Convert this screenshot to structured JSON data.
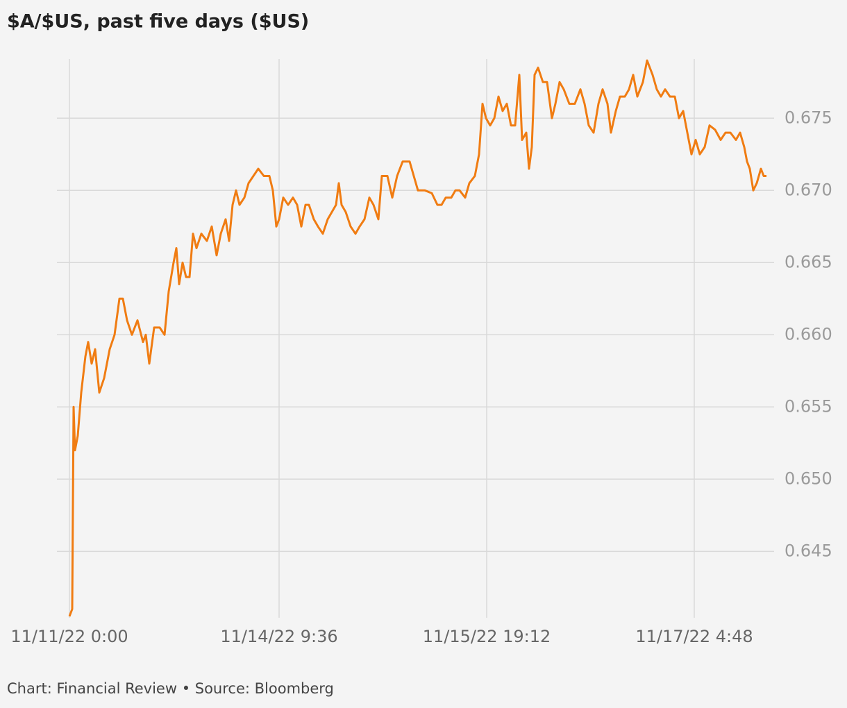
{
  "chart_data": {
    "type": "line",
    "title": "$A/$US, past five days ($US)",
    "source": "Chart: Financial Review • Source: Bloomberg",
    "color": "#f07c12",
    "grid": true,
    "xlim": [
      0,
      1015
    ],
    "xticks": [
      {
        "value": 0,
        "label": "11/11/22 0:00"
      },
      {
        "value": 302,
        "label": "11/14/22 9:36"
      },
      {
        "value": 601,
        "label": "11/15/22 19:12"
      },
      {
        "value": 900,
        "label": "11/17/22 4:48"
      }
    ],
    "ylim": [
      0.6404,
      0.6791
    ],
    "yticks": [
      0.645,
      {
        "value": 0.65,
        "label": "0.650"
      },
      0.655,
      {
        "value": 0.66,
        "label": "0.660"
      },
      0.665,
      {
        "value": 0.67,
        "label": "0.670"
      },
      0.675
    ],
    "x": [
      0,
      4,
      6,
      8,
      12,
      17,
      23,
      27,
      32,
      37,
      43,
      50,
      58,
      65,
      72,
      77,
      83,
      90,
      98,
      106,
      110,
      115,
      122,
      130,
      137,
      143,
      150,
      154,
      158,
      163,
      168,
      173,
      178,
      183,
      190,
      198,
      205,
      212,
      218,
      225,
      230,
      235,
      240,
      245,
      252,
      258,
      265,
      272,
      280,
      288,
      293,
      298,
      302,
      308,
      315,
      322,
      328,
      334,
      340,
      345,
      352,
      358,
      365,
      372,
      378,
      384,
      388,
      392,
      398,
      405,
      412,
      418,
      425,
      432,
      438,
      445,
      450,
      458,
      465,
      472,
      480,
      490,
      496,
      502,
      512,
      522,
      530,
      536,
      542,
      550,
      556,
      562,
      570,
      576,
      584,
      590,
      595,
      600,
      606,
      612,
      618,
      624,
      630,
      636,
      642,
      648,
      652,
      658,
      662,
      666,
      670,
      675,
      682,
      688,
      695,
      700,
      706,
      712,
      720,
      728,
      736,
      742,
      748,
      755,
      762,
      768,
      775,
      780,
      787,
      793,
      800,
      806,
      812,
      818,
      826,
      832,
      840,
      846,
      852,
      858,
      865,
      872,
      878,
      884,
      890,
      896,
      902,
      908,
      915,
      922,
      930,
      938,
      945,
      952,
      960,
      966,
      972,
      976,
      980,
      985,
      990,
      996,
      1000,
      1004
    ],
    "values": [
      0.6405,
      0.641,
      0.655,
      0.652,
      0.653,
      0.656,
      0.6585,
      0.6595,
      0.658,
      0.659,
      0.656,
      0.657,
      0.659,
      0.66,
      0.6625,
      0.6625,
      0.661,
      0.66,
      0.661,
      0.6595,
      0.66,
      0.658,
      0.6605,
      0.6605,
      0.66,
      0.663,
      0.665,
      0.666,
      0.6635,
      0.665,
      0.664,
      0.664,
      0.667,
      0.666,
      0.667,
      0.6665,
      0.6675,
      0.6655,
      0.667,
      0.668,
      0.6665,
      0.669,
      0.67,
      0.669,
      0.6695,
      0.6705,
      0.671,
      0.6715,
      0.671,
      0.671,
      0.67,
      0.6675,
      0.668,
      0.6695,
      0.669,
      0.6695,
      0.669,
      0.6675,
      0.669,
      0.669,
      0.668,
      0.6675,
      0.667,
      0.668,
      0.6685,
      0.669,
      0.6705,
      0.669,
      0.6685,
      0.6675,
      0.667,
      0.6675,
      0.668,
      0.6695,
      0.669,
      0.668,
      0.671,
      0.671,
      0.6695,
      0.671,
      0.672,
      0.672,
      0.671,
      0.67,
      0.67,
      0.6698,
      0.669,
      0.669,
      0.6695,
      0.6695,
      0.67,
      0.67,
      0.6695,
      0.6705,
      0.671,
      0.6725,
      0.676,
      0.675,
      0.6745,
      0.675,
      0.6765,
      0.6755,
      0.676,
      0.6745,
      0.6745,
      0.678,
      0.6735,
      0.674,
      0.6715,
      0.673,
      0.678,
      0.6785,
      0.6775,
      0.6775,
      0.675,
      0.676,
      0.6775,
      0.677,
      0.676,
      0.676,
      0.677,
      0.676,
      0.6745,
      0.674,
      0.676,
      0.677,
      0.676,
      0.674,
      0.6755,
      0.6765,
      0.6765,
      0.677,
      0.678,
      0.6765,
      0.6775,
      0.679,
      0.678,
      0.677,
      0.6765,
      0.677,
      0.6765,
      0.6765,
      0.675,
      0.6755,
      0.674,
      0.6725,
      0.6735,
      0.6725,
      0.673,
      0.6745,
      0.6742,
      0.6735,
      0.674,
      0.674,
      0.6735,
      0.674,
      0.673,
      0.672,
      0.6715,
      0.67,
      0.6705,
      0.6715,
      0.671,
      0.671
    ]
  }
}
